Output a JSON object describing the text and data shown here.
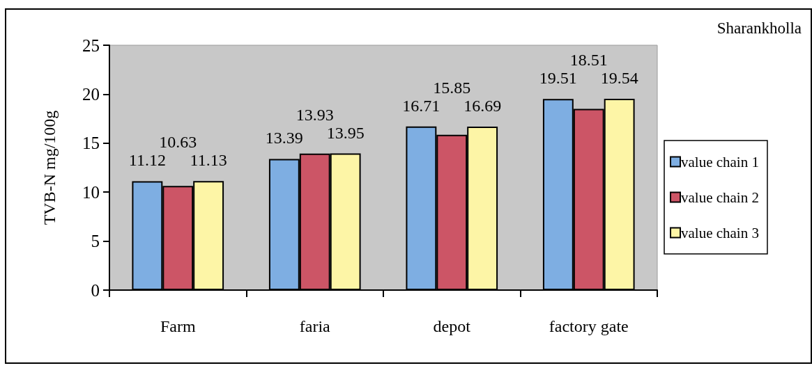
{
  "chart_data": {
    "type": "bar",
    "title": "Sharankholla",
    "ylabel": "TVB-N mg/100g",
    "categories": [
      "Farm",
      "faria",
      "depot",
      "factory gate"
    ],
    "series": [
      {
        "name": "value chain 1",
        "color": "#7eaee2",
        "values": [
          11.12,
          13.39,
          16.71,
          19.51
        ]
      },
      {
        "name": "value chain 2",
        "color": "#cc5566",
        "values": [
          10.63,
          13.93,
          15.85,
          18.51
        ]
      },
      {
        "name": "value chain 3",
        "color": "#fdf5a6",
        "values": [
          11.13,
          13.95,
          16.69,
          19.54
        ]
      }
    ],
    "ylim": [
      0,
      25
    ],
    "yticks": [
      0,
      5,
      10,
      15,
      20,
      25
    ],
    "grid": false,
    "legend": "right",
    "data_labels": true
  }
}
